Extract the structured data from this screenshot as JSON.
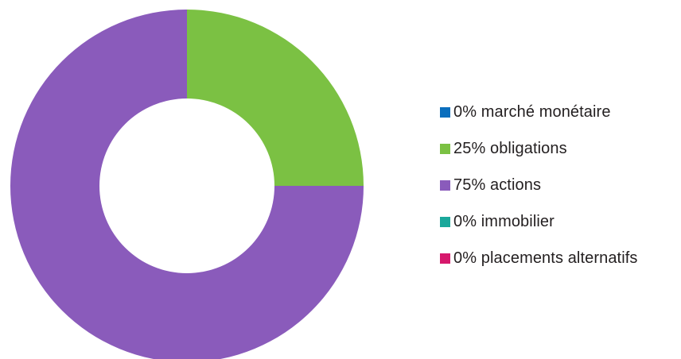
{
  "chart_data": {
    "type": "pie",
    "variant": "donut",
    "legend_position": "right",
    "categories": [
      "marché monétaire",
      "obligations",
      "actions",
      "immobilier",
      "placements alternatifs"
    ],
    "values": [
      0,
      25,
      75,
      0,
      0
    ],
    "unit": "%",
    "colors": [
      "#0a6ebd",
      "#7bc143",
      "#8a5bbb",
      "#1aa89b",
      "#d6186c"
    ],
    "legend": [
      {
        "label": "0% marché monétaire",
        "color": "#0a6ebd"
      },
      {
        "label": "25% obligations",
        "color": "#7bc143"
      },
      {
        "label": "75% actions",
        "color": "#8a5bbb"
      },
      {
        "label": "0% immobilier",
        "color": "#1aa89b"
      },
      {
        "label": "0% placements alternatifs",
        "color": "#d6186c"
      }
    ]
  }
}
